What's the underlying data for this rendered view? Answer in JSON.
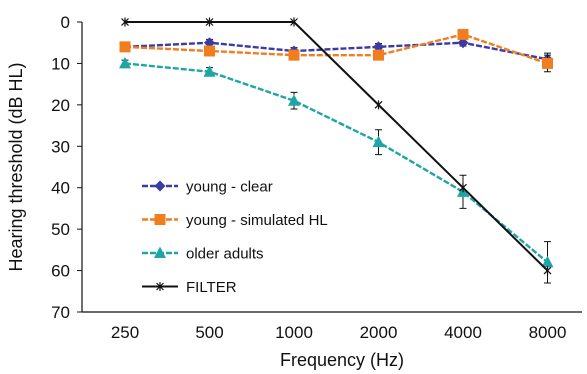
{
  "chart_data": {
    "type": "line",
    "title": "",
    "xlabel": "Frequency (Hz)",
    "ylabel": "Hearing threshold (dB HL)",
    "categories": [
      "250",
      "500",
      "1000",
      "2000",
      "4000",
      "8000"
    ],
    "ylim": [
      0,
      70
    ],
    "y_inverted": true,
    "yticks": [
      0,
      10,
      20,
      30,
      40,
      50,
      60,
      70
    ],
    "grid": false,
    "legend_position": "lower-left",
    "series": [
      {
        "name": "young - clear",
        "color": "#3b3ba6",
        "marker": "diamond",
        "dash": "dashed",
        "values": [
          6,
          5,
          7,
          6,
          5,
          9
        ],
        "errors": [
          0.8,
          0.8,
          0.8,
          0.8,
          0.8,
          1.5
        ]
      },
      {
        "name": "young - simulated HL",
        "color": "#f07d1e",
        "marker": "square",
        "dash": "dashed",
        "values": [
          6,
          7,
          8,
          8,
          3,
          10
        ],
        "errors": [
          0.8,
          0.8,
          1.0,
          1.0,
          1.0,
          2.0
        ]
      },
      {
        "name": "older adults",
        "color": "#1fa5a6",
        "marker": "triangle",
        "dash": "dashed",
        "values": [
          10,
          12,
          19,
          29,
          41,
          58
        ],
        "errors": [
          0.8,
          1.0,
          2.0,
          3.0,
          4.0,
          5.0
        ]
      },
      {
        "name": "FILTER",
        "color": "#111111",
        "marker": "star",
        "dash": "solid",
        "values": [
          0,
          0,
          0,
          20,
          40,
          60
        ],
        "errors": null
      }
    ]
  }
}
